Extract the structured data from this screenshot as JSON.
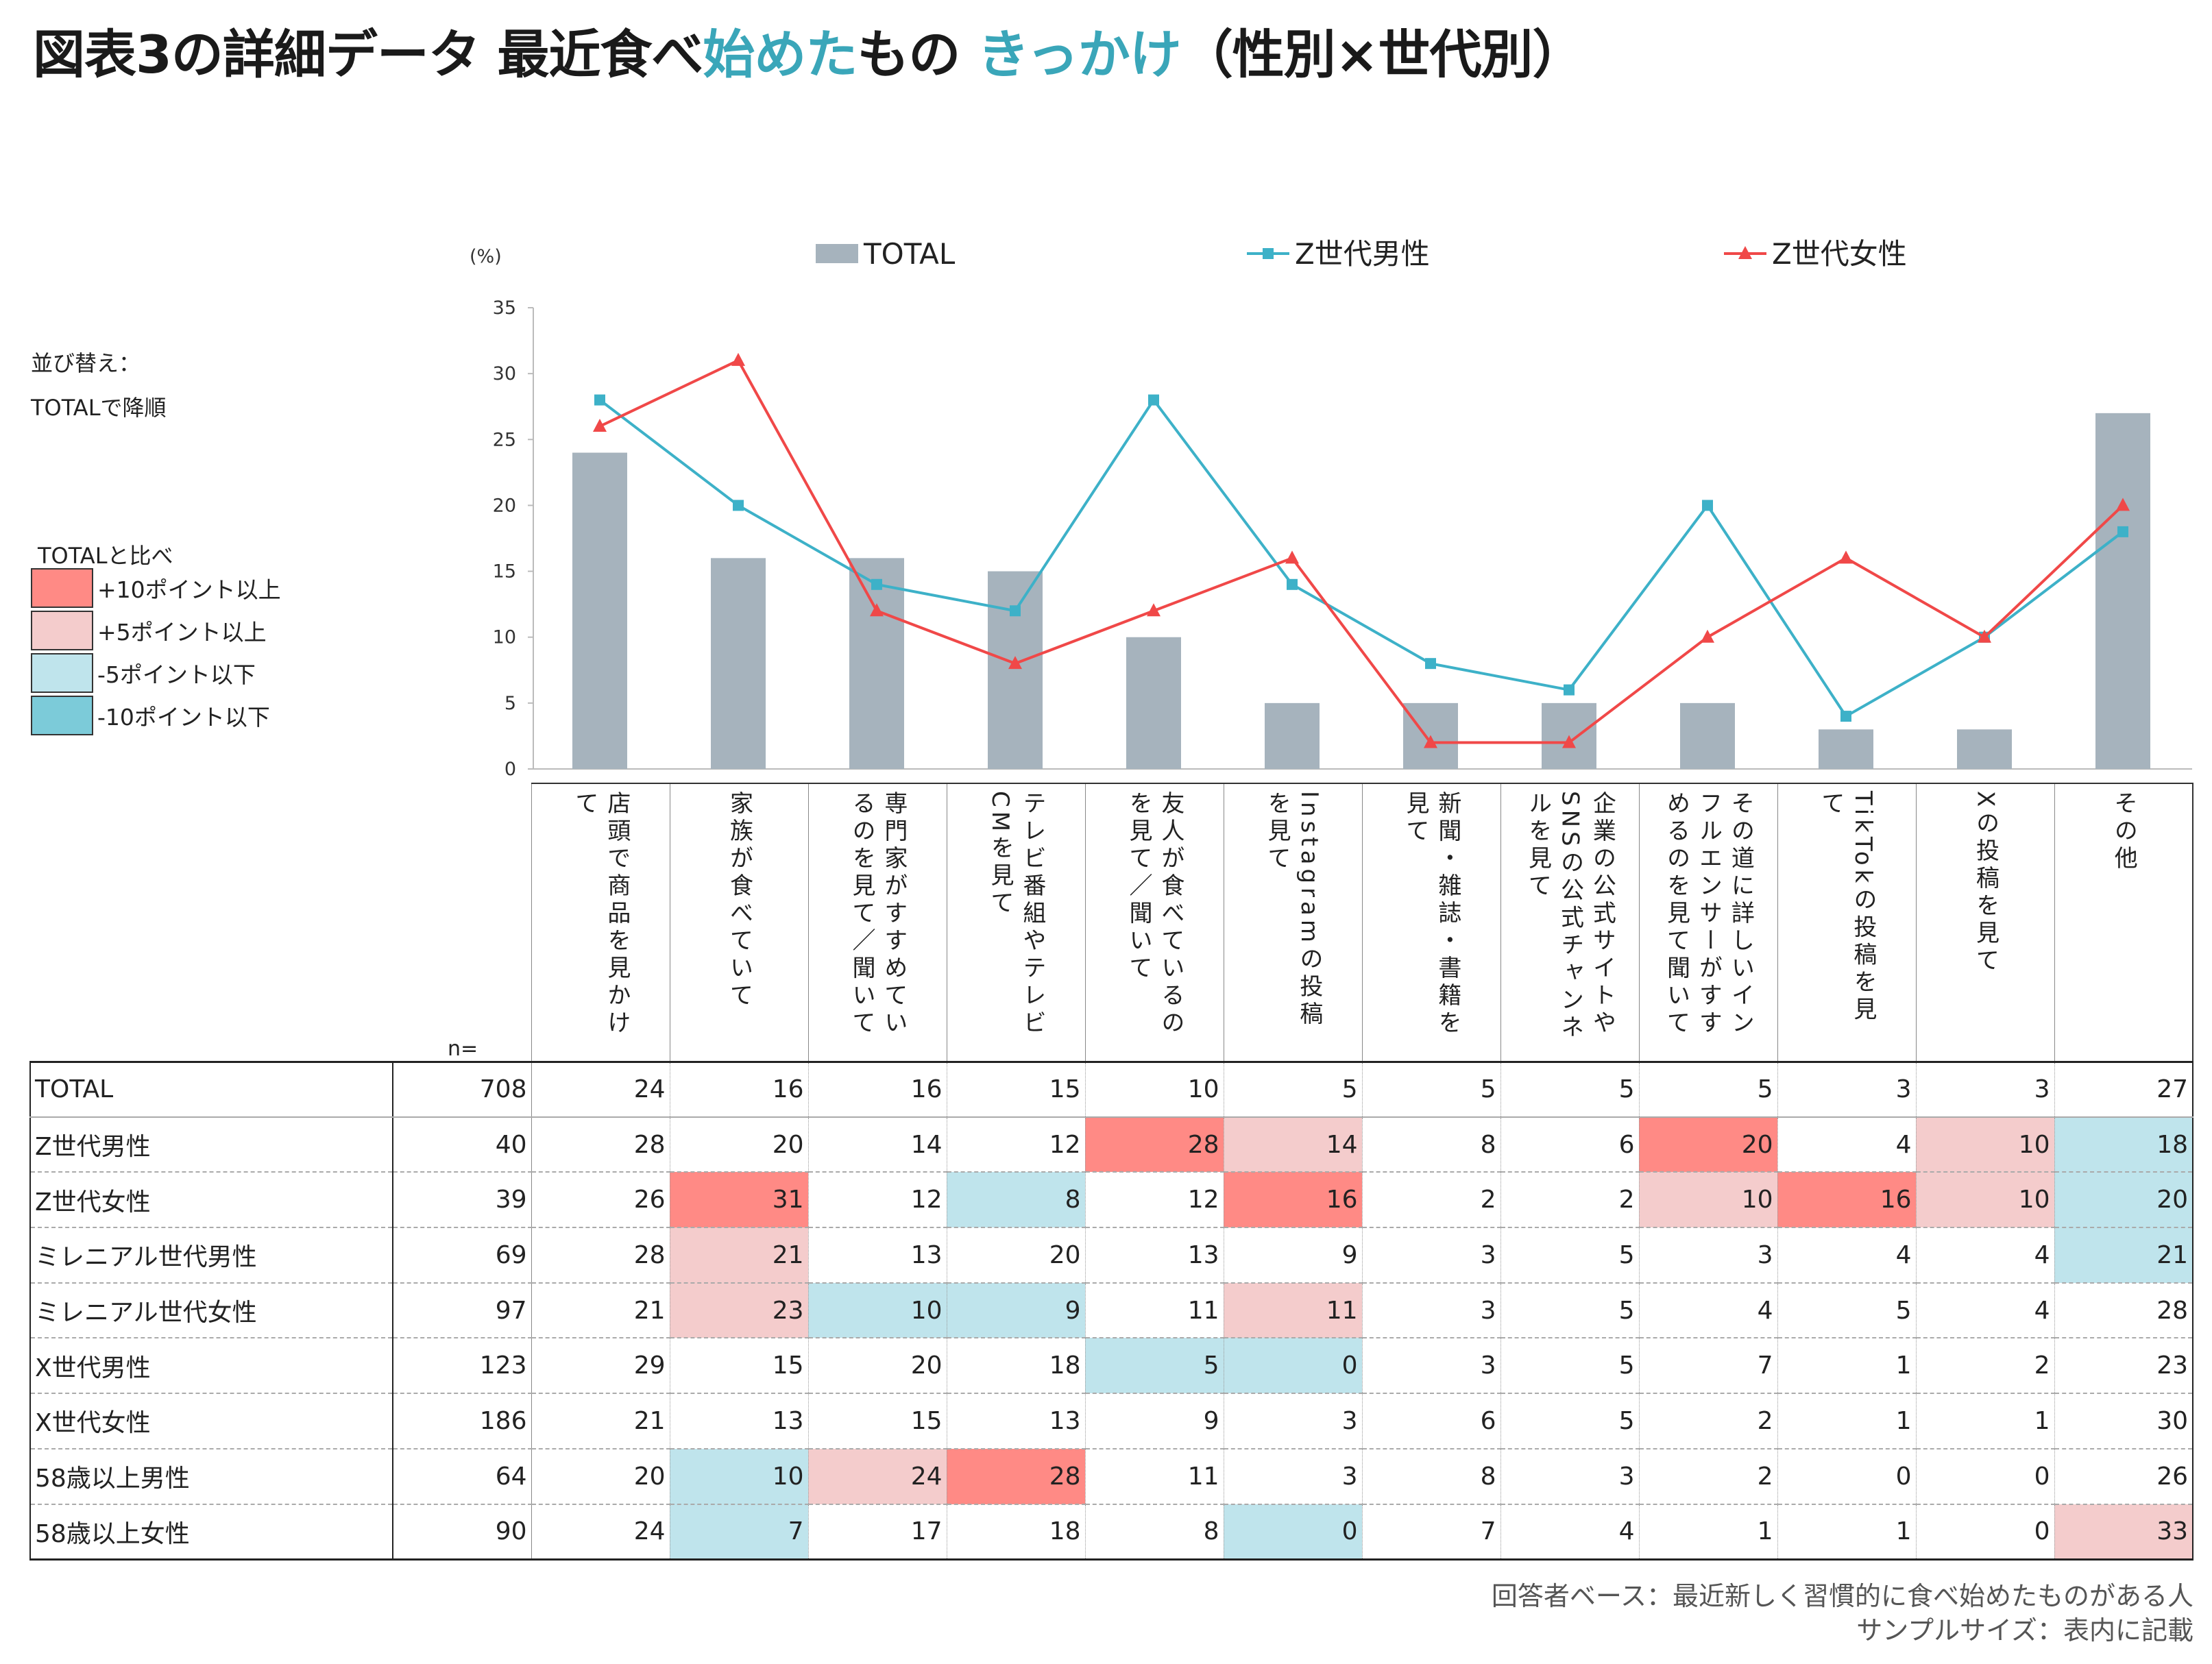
{
  "title": {
    "part1": "図表3の詳細データ 最近食べ",
    "part2": "始めた",
    "part3": "もの ",
    "part4": "きっかけ",
    "part5": "（性別×世代別）"
  },
  "sort_note": {
    "line1": "並び替え：",
    "line2": "TOTALで降順"
  },
  "compare_legend": {
    "title": "TOTALと比べ",
    "items": [
      {
        "label": "+10ポイント以上",
        "color": "#ff8a85"
      },
      {
        "label": "+5ポイント以上",
        "color": "#f4cccc"
      },
      {
        "label": "-5ポイント以下",
        "color": "#bfe4ec"
      },
      {
        "label": "-10ポイント以下",
        "color": "#7ccbd9"
      }
    ]
  },
  "chart_data": {
    "type": "bar+line",
    "ylabel": "(%)",
    "ylim": [
      0,
      35
    ],
    "yticks": [
      0,
      5,
      10,
      15,
      20,
      25,
      30,
      35
    ],
    "legend_position": "top",
    "categories": [
      "店頭で商品を見かけて",
      "家族が食べていて",
      "専門家がすすめているのを見て／聞いて",
      "テレビ番組やテレビCMを見て",
      "友人が食べているのを見て／聞いて",
      "Instagramの投稿を見て",
      "新聞・雑誌・書籍を見て",
      "企業の公式サイトやSNSの公式チャンネルを見て",
      "その道に詳しいインフルエンサーがすすめるのを見て聞いて",
      "TikTokの投稿を見て",
      "Xの投稿を見て",
      "その他"
    ],
    "series": [
      {
        "name": "TOTAL",
        "type": "bar",
        "color": "#a6b3bd",
        "values": [
          24,
          16,
          16,
          15,
          10,
          5,
          5,
          5,
          5,
          3,
          3,
          27
        ]
      },
      {
        "name": "Z世代男性",
        "type": "line",
        "marker": "square",
        "color": "#3db1c8",
        "values": [
          28,
          20,
          14,
          12,
          28,
          14,
          8,
          6,
          20,
          4,
          10,
          18
        ]
      },
      {
        "name": "Z世代女性",
        "type": "line",
        "marker": "triangle",
        "color": "#f04848",
        "values": [
          26,
          31,
          12,
          8,
          12,
          16,
          2,
          2,
          10,
          16,
          10,
          20
        ]
      }
    ]
  },
  "table": {
    "n_label": "n=",
    "rows": [
      {
        "label": "TOTAL",
        "n": "708",
        "values": [
          24,
          16,
          16,
          15,
          10,
          5,
          5,
          5,
          5,
          3,
          3,
          27
        ],
        "hl": "............"
      },
      {
        "label": "Z世代男性",
        "n": "40",
        "values": [
          28,
          20,
          14,
          12,
          28,
          14,
          8,
          6,
          20,
          4,
          10,
          18
        ],
        "hl": "....rp..r.pb"
      },
      {
        "label": "Z世代女性",
        "n": "39",
        "values": [
          26,
          31,
          12,
          8,
          12,
          16,
          2,
          2,
          10,
          16,
          10,
          20
        ],
        "hl": ".r.b.r..prpb"
      },
      {
        "label": "ミレニアル世代男性",
        "n": "69",
        "values": [
          28,
          21,
          13,
          20,
          13,
          9,
          3,
          5,
          3,
          4,
          4,
          21
        ],
        "hl": ".p.........b"
      },
      {
        "label": "ミレニアル世代女性",
        "n": "97",
        "values": [
          21,
          23,
          10,
          9,
          11,
          11,
          3,
          5,
          4,
          5,
          4,
          28
        ],
        "hl": ".pbb.p......"
      },
      {
        "label": "X世代男性",
        "n": "123",
        "values": [
          29,
          15,
          20,
          18,
          5,
          0,
          3,
          5,
          7,
          1,
          2,
          23
        ],
        "hl": "....bb......"
      },
      {
        "label": "X世代女性",
        "n": "186",
        "values": [
          21,
          13,
          15,
          13,
          9,
          3,
          6,
          5,
          2,
          1,
          1,
          30
        ],
        "hl": "............"
      },
      {
        "label": "58歳以上男性",
        "n": "64",
        "values": [
          20,
          10,
          24,
          28,
          11,
          3,
          8,
          3,
          2,
          0,
          0,
          26
        ],
        "hl": ".bpr........"
      },
      {
        "label": "58歳以上女性",
        "n": "90",
        "values": [
          24,
          7,
          17,
          18,
          8,
          0,
          7,
          4,
          1,
          1,
          0,
          33
        ],
        "hl": ".b...b.....p"
      }
    ]
  },
  "footnotes": {
    "base": "回答者ベース：最近新しく習慣的に食べ始めたものがある人",
    "sample": "サンプルサイズ：表内に記載"
  }
}
